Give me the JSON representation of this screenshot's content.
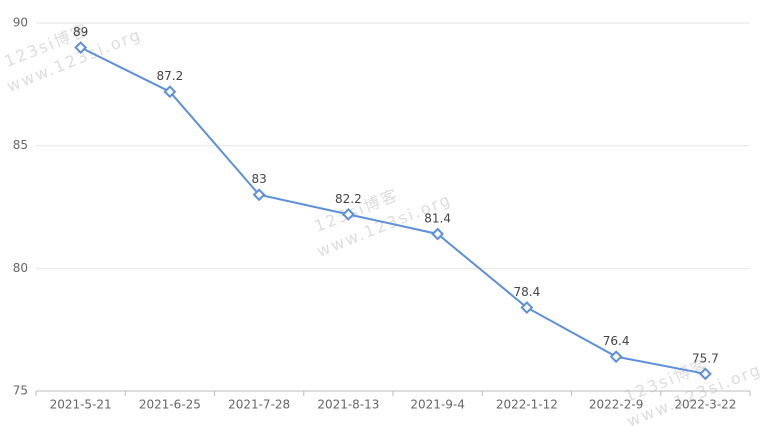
{
  "chart_data": {
    "type": "line",
    "categories": [
      "2021-5-21",
      "2021-6-25",
      "2021-7-28",
      "2021-8-13",
      "2021-9-4",
      "2022-1-12",
      "2022-2-9",
      "2022-3-22"
    ],
    "series": [
      {
        "color": "#5b8fdf",
        "values": [
          89,
          87.2,
          83,
          82.2,
          81.4,
          78.4,
          76.4,
          75.7
        ]
      }
    ],
    "ylim": [
      75,
      90
    ],
    "yticks": [
      75,
      80,
      85,
      90
    ],
    "grid": true,
    "watermark": [
      "123si博客",
      "www.123si.org"
    ]
  }
}
